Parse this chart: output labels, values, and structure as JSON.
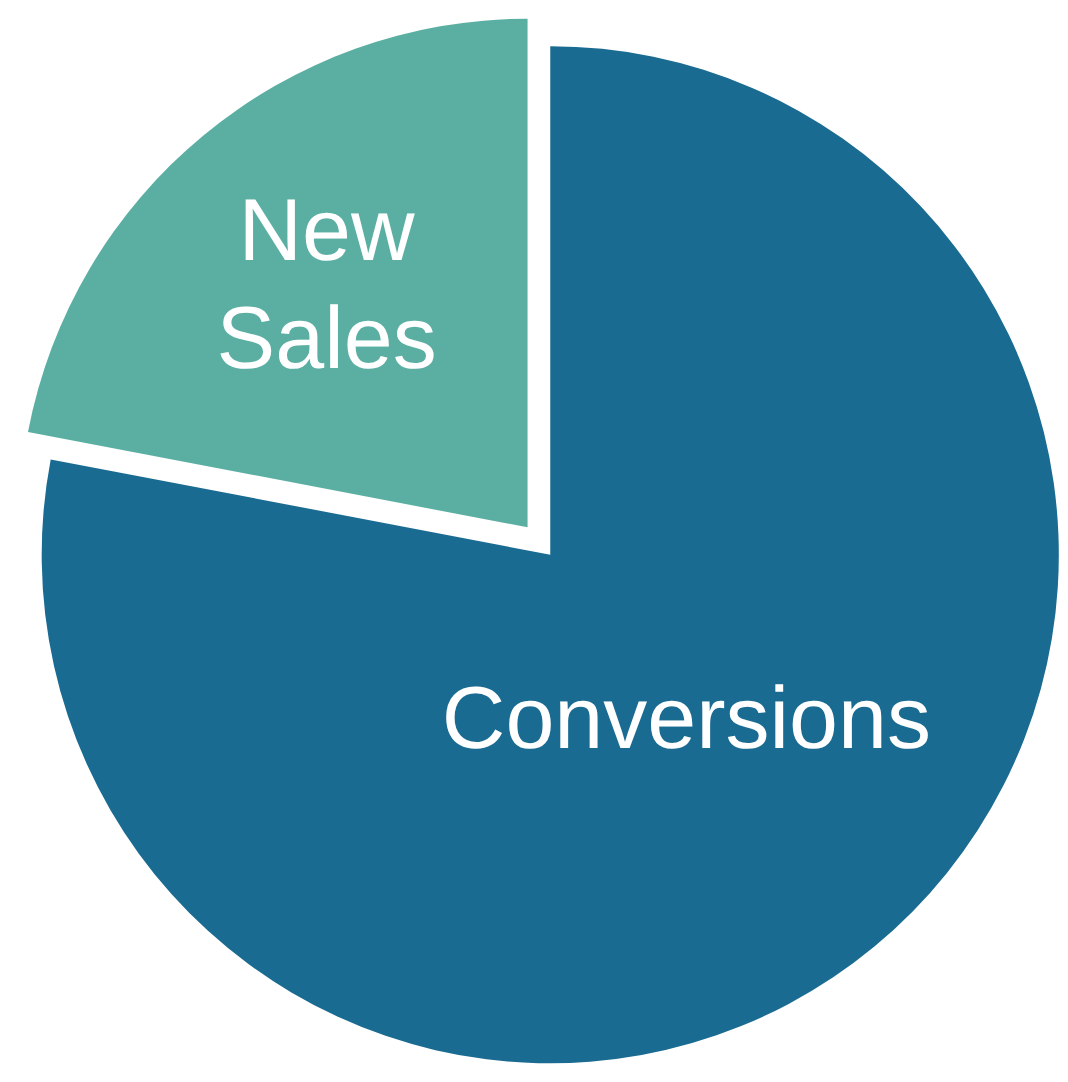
{
  "chart_data": {
    "type": "pie",
    "categories": [
      "Conversions",
      "New Sales"
    ],
    "values": [
      78,
      22
    ],
    "colors": [
      "#1a6b91",
      "#5aafa2"
    ],
    "data_labels": false
  }
}
